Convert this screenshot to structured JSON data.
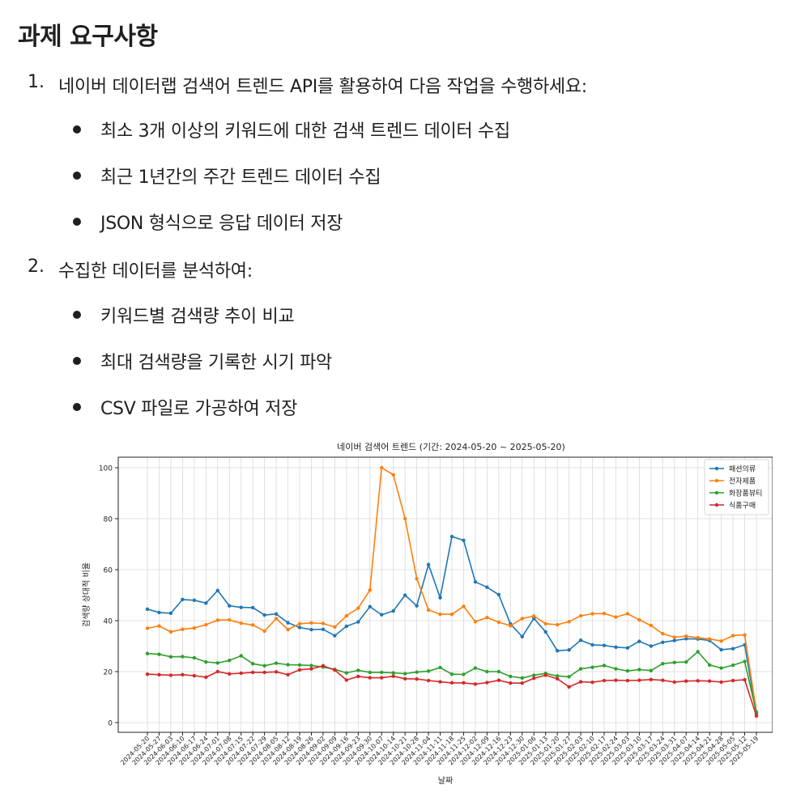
{
  "heading": "과제 요구사항",
  "tasks": [
    {
      "number": "1.",
      "text": "네이버 데이터랩 검색어 트렌드 API를 활용하여 다음 작업을 수행하세요:",
      "bullets": [
        "최소 3개 이상의 키워드에 대한 검색 트렌드 데이터 수집",
        "최근 1년간의 주간 트렌드 데이터 수집",
        "JSON 형식으로 응답 데이터 저장"
      ]
    },
    {
      "number": "2.",
      "text": "수집한 데이터를 분석하여:",
      "bullets": [
        "키워드별 검색량 추이 비교",
        "최대 검색량을 기록한 시기 파악",
        "CSV 파일로 가공하여 저장"
      ]
    }
  ],
  "chart_data": {
    "type": "line",
    "title": "네이버 검색어 트렌드 (기간: 2024-05-20 ~ 2025-05-20)",
    "xlabel": "날짜",
    "ylabel": "검색량 상대적 비율",
    "ylim": [
      0,
      100
    ],
    "yticks": [
      0,
      20,
      40,
      60,
      80,
      100
    ],
    "grid": true,
    "legend_position": "top-right",
    "x": [
      "2024-05-20",
      "2024-05-27",
      "2024-06-03",
      "2024-06-10",
      "2024-06-17",
      "2024-06-24",
      "2024-07-01",
      "2024-07-08",
      "2024-07-15",
      "2024-07-22",
      "2024-07-29",
      "2024-08-05",
      "2024-08-12",
      "2024-08-19",
      "2024-08-26",
      "2024-09-02",
      "2024-09-09",
      "2024-09-16",
      "2024-09-23",
      "2024-09-30",
      "2024-10-07",
      "2024-10-14",
      "2024-10-21",
      "2024-10-28",
      "2024-11-04",
      "2024-11-11",
      "2024-11-18",
      "2024-11-25",
      "2024-12-02",
      "2024-12-09",
      "2024-12-16",
      "2024-12-23",
      "2024-12-30",
      "2025-01-06",
      "2025-01-13",
      "2025-01-20",
      "2025-01-27",
      "2025-02-03",
      "2025-02-10",
      "2025-02-17",
      "2025-02-24",
      "2025-03-03",
      "2025-03-10",
      "2025-03-17",
      "2025-03-24",
      "2025-03-31",
      "2025-04-07",
      "2025-04-14",
      "2025-04-21",
      "2025-04-28",
      "2025-05-05",
      "2025-05-12",
      "2025-05-19"
    ],
    "series": [
      {
        "name": "패션의류",
        "color": "#1f77b4",
        "values": [
          44.5,
          43.2,
          42.9,
          48.3,
          48.0,
          46.9,
          51.8,
          45.8,
          45.2,
          45.1,
          42.2,
          42.6,
          39.2,
          37.3,
          36.5,
          36.6,
          34.1,
          37.8,
          39.5,
          45.5,
          42.3,
          43.8,
          50.0,
          45.8,
          62.0,
          49.0,
          73.0,
          71.5,
          55.2,
          53.1,
          50.2,
          38.7,
          33.7,
          40.9,
          35.6,
          28.2,
          28.5,
          32.3,
          30.5,
          30.3,
          29.6,
          29.3,
          31.9,
          30.0,
          31.5,
          32.2,
          32.9,
          32.8,
          32.2,
          28.6,
          29.0,
          30.5,
          3.5
        ]
      },
      {
        "name": "전자제품",
        "color": "#ff7f0e",
        "values": [
          37.0,
          37.9,
          35.6,
          36.6,
          37.1,
          38.4,
          40.2,
          40.3,
          39.0,
          38.3,
          35.9,
          40.8,
          36.5,
          38.8,
          39.1,
          38.9,
          37.5,
          41.9,
          44.9,
          52.0,
          100.0,
          97.2,
          80.0,
          56.5,
          44.2,
          42.5,
          42.5,
          45.6,
          39.6,
          41.2,
          39.4,
          38.0,
          40.8,
          41.8,
          38.8,
          38.4,
          39.6,
          41.9,
          42.7,
          42.8,
          41.4,
          42.7,
          40.3,
          38.1,
          34.9,
          33.5,
          33.9,
          33.3,
          32.8,
          32.0,
          34.1,
          34.4,
          4.2
        ]
      },
      {
        "name": "화장품뷰티",
        "color": "#2ca02c",
        "values": [
          27.1,
          26.8,
          25.8,
          25.9,
          25.4,
          23.8,
          23.4,
          24.4,
          26.2,
          23.1,
          22.3,
          23.3,
          22.7,
          22.6,
          22.4,
          21.8,
          20.9,
          19.5,
          20.5,
          19.7,
          19.7,
          19.5,
          19.2,
          19.8,
          20.2,
          21.6,
          19.0,
          18.9,
          21.4,
          20.0,
          20.0,
          18.1,
          17.5,
          18.6,
          19.3,
          18.3,
          18.0,
          21.1,
          21.7,
          22.4,
          21.1,
          20.3,
          20.8,
          20.4,
          23.1,
          23.6,
          23.8,
          27.8,
          22.6,
          21.4,
          22.5,
          24.0,
          4.0
        ]
      },
      {
        "name": "식품구매",
        "color": "#d62728",
        "values": [
          19.0,
          18.8,
          18.6,
          18.8,
          18.4,
          17.8,
          20.0,
          19.1,
          19.4,
          19.7,
          19.7,
          19.9,
          18.8,
          20.7,
          21.1,
          22.3,
          20.6,
          16.7,
          18.1,
          17.6,
          17.6,
          18.2,
          17.2,
          17.1,
          16.5,
          16.0,
          15.6,
          15.6,
          15.1,
          15.7,
          16.6,
          15.5,
          15.5,
          17.4,
          18.6,
          17.2,
          14.0,
          16.0,
          15.8,
          16.5,
          16.6,
          16.5,
          16.6,
          16.9,
          16.6,
          15.9,
          16.3,
          16.4,
          16.3,
          15.9,
          16.5,
          16.8,
          2.6
        ]
      }
    ]
  }
}
